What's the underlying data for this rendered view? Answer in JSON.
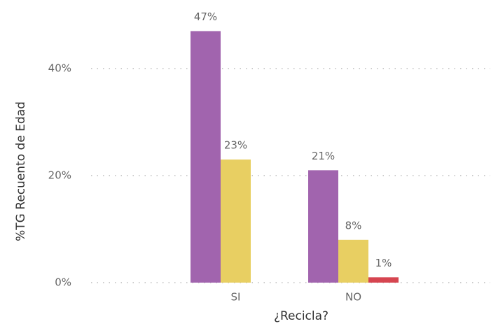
{
  "chart_data": {
    "type": "bar",
    "x_label": "¿Recicla?",
    "y_label": "%TG Recuento de Edad",
    "categories": [
      "SI",
      "NO"
    ],
    "series": [
      {
        "color": "#a164ae",
        "values": [
          47,
          21
        ],
        "value_labels": [
          "47%",
          "21%"
        ]
      },
      {
        "color": "#e8cf62",
        "values": [
          23,
          8
        ],
        "value_labels": [
          "23%",
          "8%"
        ]
      },
      {
        "color": "#d64550",
        "values": [
          null,
          1
        ],
        "value_labels": [
          null,
          "1%"
        ]
      }
    ],
    "ylim": [
      0,
      50
    ],
    "yticks": [
      {
        "value": 0,
        "label": "0%"
      },
      {
        "value": 20,
        "label": "20%"
      },
      {
        "value": 40,
        "label": "40%"
      }
    ],
    "grid": true
  }
}
